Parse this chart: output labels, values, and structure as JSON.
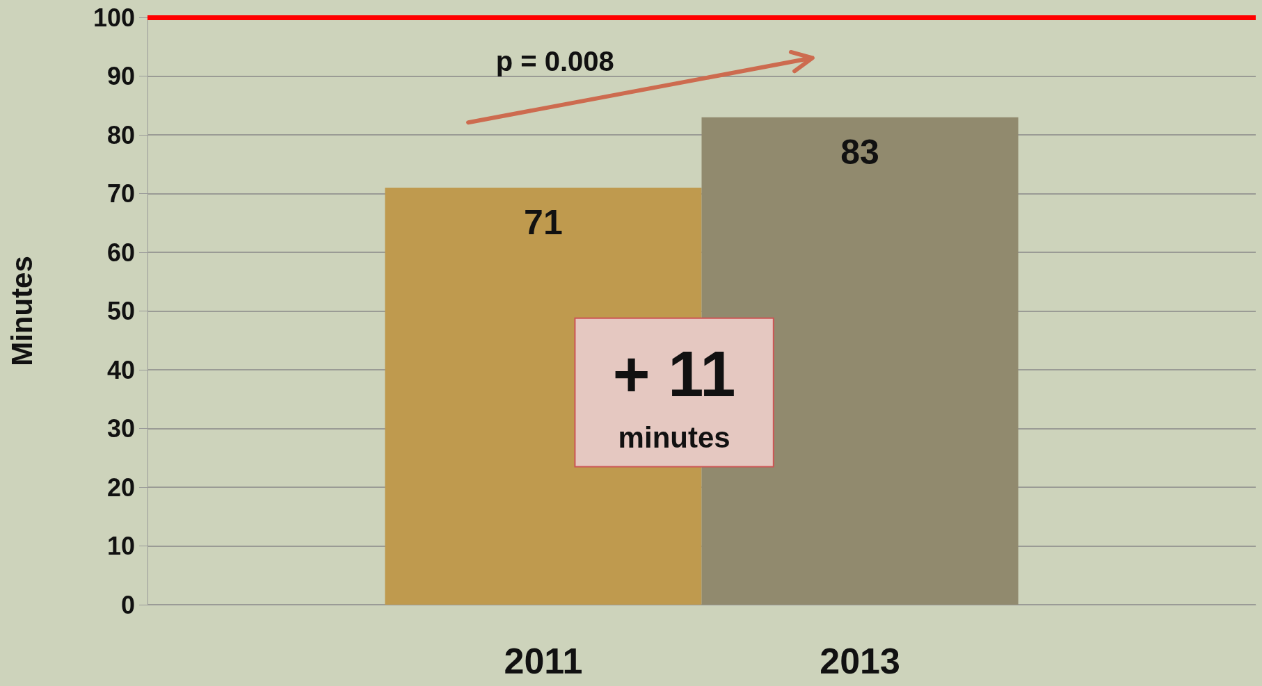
{
  "chart_data": {
    "type": "bar",
    "ylabel": "Minutes",
    "categories": [
      "2011",
      "2013"
    ],
    "values": [
      71,
      83
    ],
    "colors": [
      "#bf9a4e",
      "#918a6e"
    ],
    "ylim": [
      0,
      100
    ],
    "yticks": [
      0,
      10,
      20,
      30,
      40,
      50,
      60,
      70,
      80,
      90,
      100
    ],
    "grid": "y",
    "data_labels": true,
    "ref_lines": [
      {
        "axis": "y",
        "value": 100,
        "color": "#ff0000"
      }
    ],
    "annotations": [
      "p = 0.008",
      "+ 11",
      "minutes"
    ]
  }
}
